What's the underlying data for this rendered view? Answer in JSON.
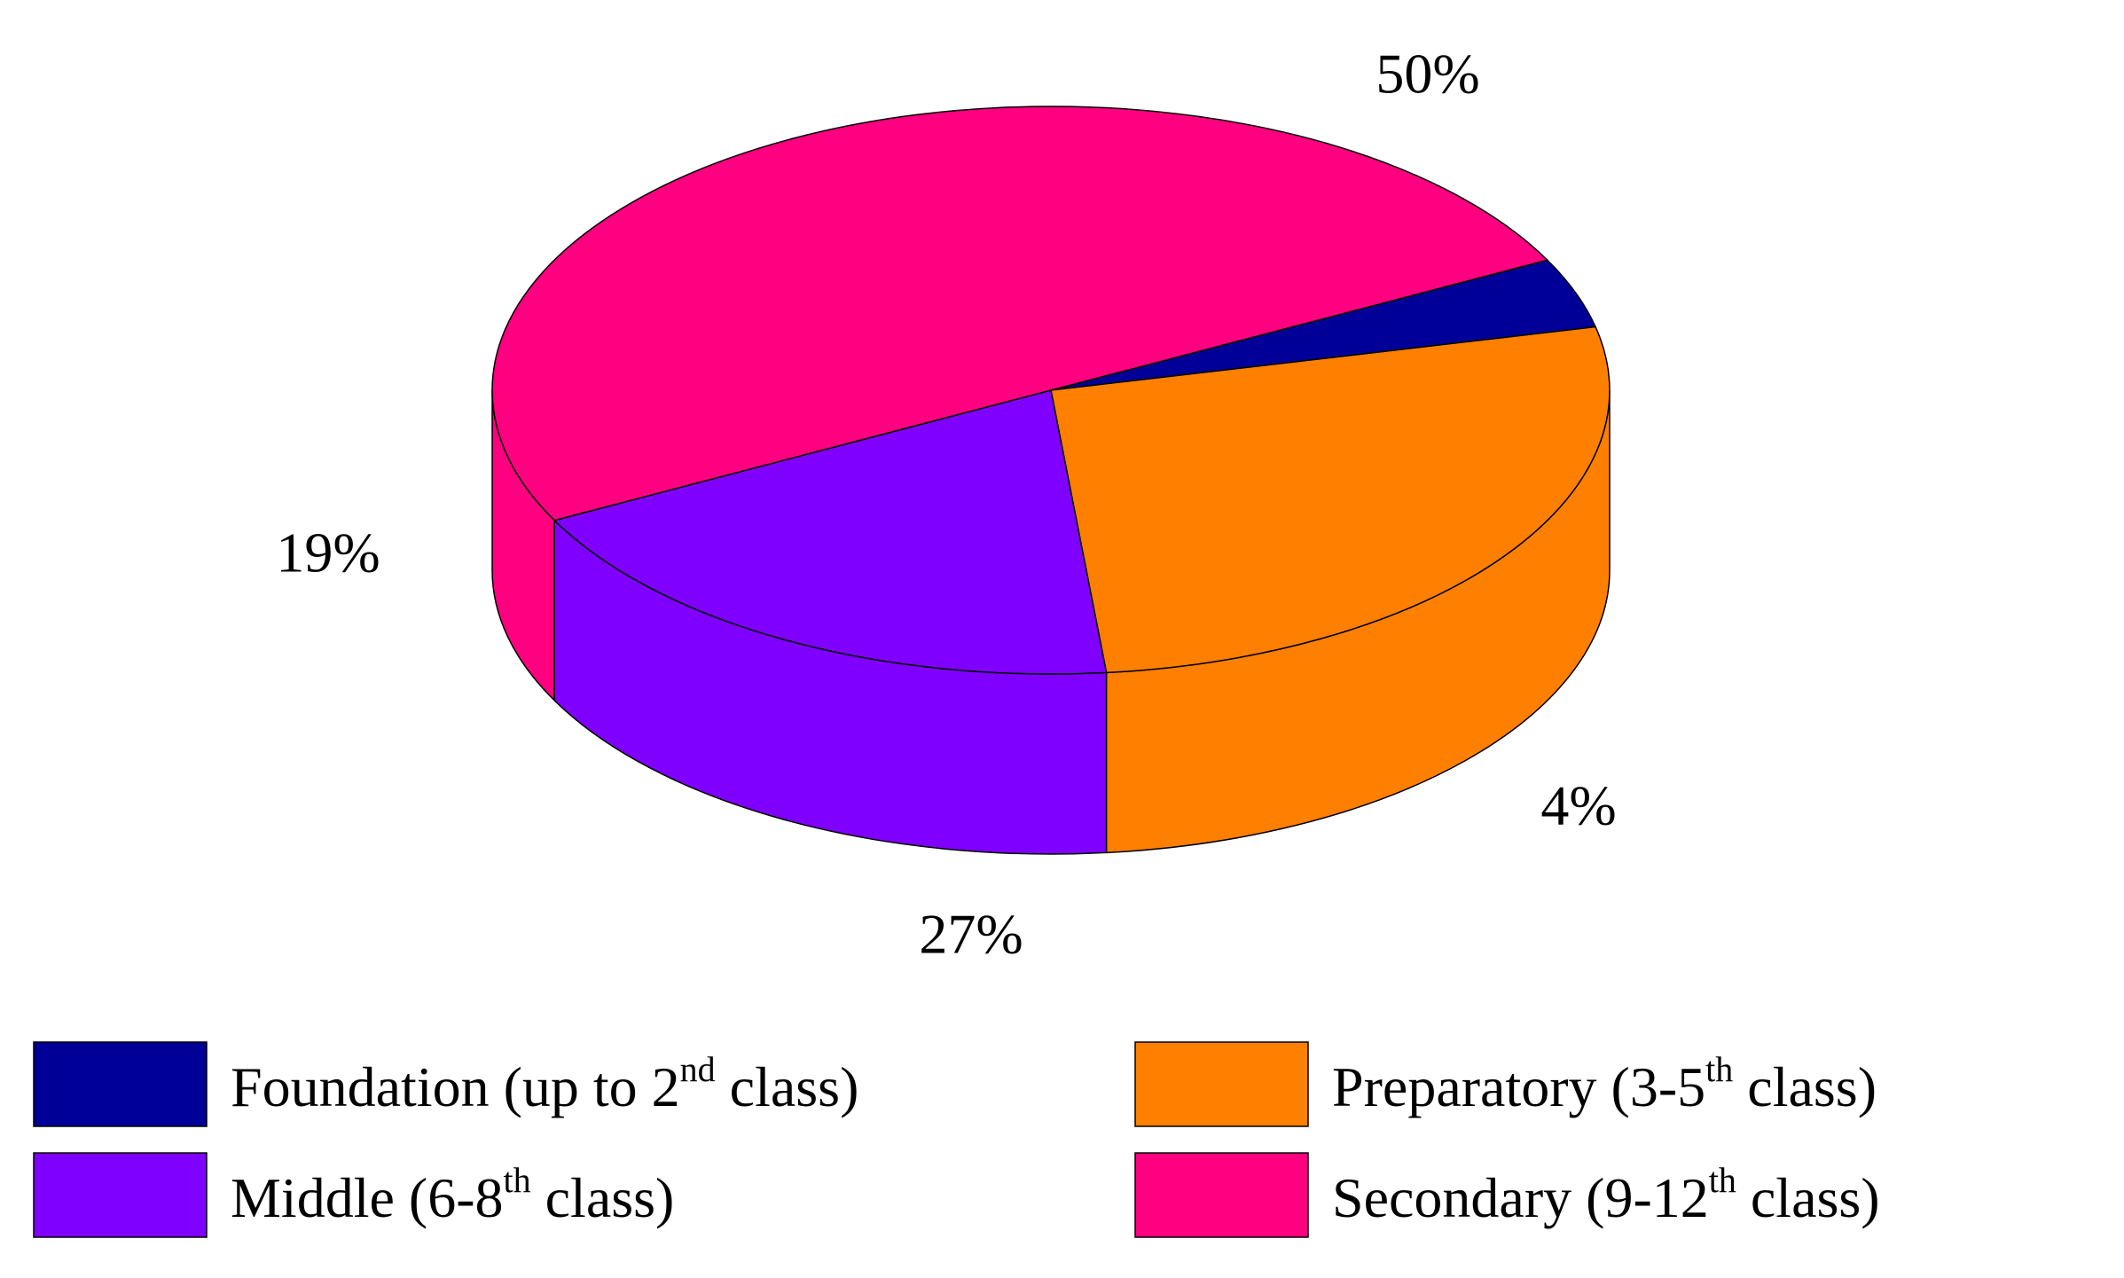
{
  "chart_data": {
    "type": "pie",
    "style": "3d",
    "title": "",
    "slices": [
      {
        "label": "Foundation (up to 2nd class)",
        "legend_text": "Foundation (up to 2",
        "legend_sup": "nd",
        "legend_tail": " class)",
        "value": 4,
        "value_label": "4%",
        "color": "#000099"
      },
      {
        "label": "Preparatory (3-5th class)",
        "legend_text": "Preparatory (3-5",
        "legend_sup": "th",
        "legend_tail": " class)",
        "value": 27,
        "value_label": "27%",
        "color": "#FF8000"
      },
      {
        "label": "Middle (6-8th class)",
        "legend_text": "Middle (6-8",
        "legend_sup": "th",
        "legend_tail": " class)",
        "value": 19,
        "value_label": "19%",
        "color": "#8000FF"
      },
      {
        "label": "Secondary (9-12th class)",
        "legend_text": "Secondary (9-12",
        "legend_sup": "th",
        "legend_tail": " class)",
        "value": 50,
        "value_label": "50%",
        "color": "#FF0080"
      }
    ],
    "legend": {
      "placement": "bottom",
      "columns": 2,
      "order": [
        0,
        1,
        2,
        3
      ]
    }
  }
}
